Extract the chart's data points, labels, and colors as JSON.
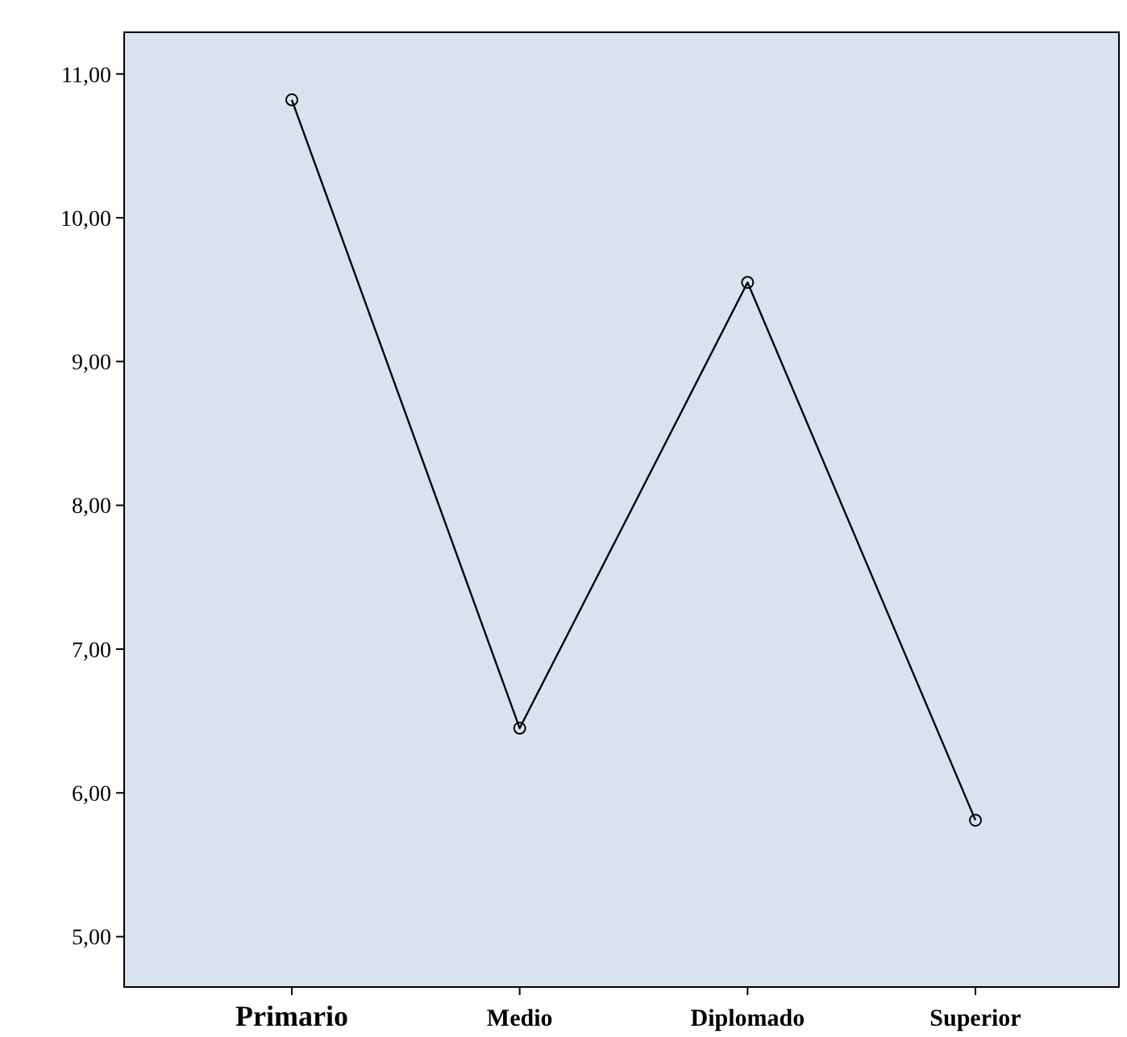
{
  "chart_data": {
    "type": "line",
    "categories": [
      "Primario",
      "Medio",
      "Diplomado",
      "Superior"
    ],
    "series": [
      {
        "color": "#000000",
        "values": [
          10.82,
          6.45,
          9.55,
          5.81
        ]
      }
    ],
    "ylim": [
      4.65,
      11.29
    ],
    "yticks": [
      {
        "value": 5,
        "label": "5,00"
      },
      {
        "value": 6,
        "label": "6,00"
      },
      {
        "value": 7,
        "label": "7,00"
      },
      {
        "value": 8,
        "label": "8,00"
      },
      {
        "value": 9,
        "label": "9,00"
      },
      {
        "value": 10,
        "label": "10,00"
      },
      {
        "value": 11,
        "label": "11,00"
      }
    ],
    "grid": false,
    "marker": "circle",
    "line_style": "solid"
  }
}
